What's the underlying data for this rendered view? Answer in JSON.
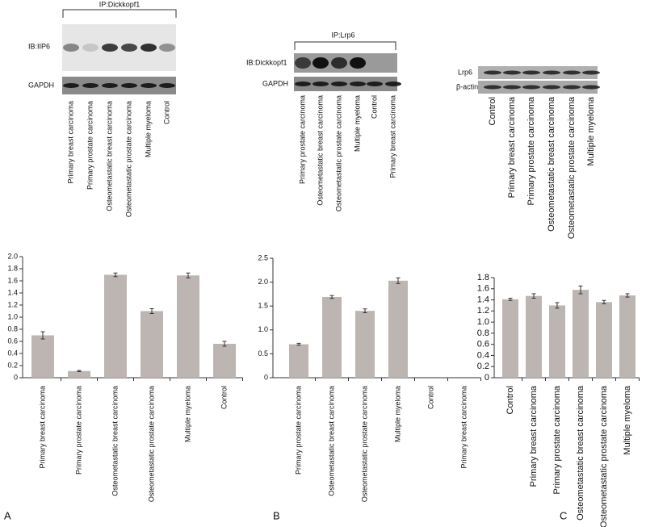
{
  "blots": [
    {
      "ip": "IP:Dickkopf1",
      "ib": "IB:IIP6",
      "loading": "GAPDH"
    },
    {
      "ip": "IP:Lrp6",
      "ib": "IB:Dickkopf1",
      "loading": "GAPDH"
    },
    {
      "ib": "Lrp6",
      "loading": "β-actin"
    }
  ],
  "chart_data": [
    {
      "type": "bar",
      "panel": "A",
      "categories": [
        "Primary breast carcinoma",
        "Primary prostate carcinoma",
        "Osteometastatic breast carcinoma",
        "Osteometastatic prostate carcinoma",
        "Multiple myeloma",
        "Control"
      ],
      "values": [
        0.7,
        0.11,
        1.7,
        1.1,
        1.69,
        0.56
      ],
      "errors": [
        0.06,
        0.01,
        0.03,
        0.04,
        0.04,
        0.04
      ],
      "color": "#bdb5b1",
      "ylim": [
        0,
        2.0
      ],
      "yticks": [
        0,
        0.2,
        0.4,
        0.6,
        0.8,
        {
          "value": 1,
          "label": "1.0"
        },
        1.2,
        1.4,
        1.6,
        1.8,
        {
          "value": 2,
          "label": "2.0"
        }
      ]
    },
    {
      "type": "bar",
      "panel": "B",
      "categories": [
        "Primary prostate carcinoma",
        "Osteometastatic breast carcinoma",
        "Osteometastatic prostate carcinoma",
        "Multiple myeloma",
        "Control",
        "Primary breast carcinoma"
      ],
      "values": [
        0.7,
        1.69,
        1.4,
        2.03,
        0,
        0
      ],
      "errors": [
        0.02,
        0.03,
        0.04,
        0.06,
        0,
        0
      ],
      "color": "#bdb5b1",
      "ylim": [
        0,
        2.5
      ],
      "yticks": [
        0,
        0.5,
        {
          "value": 1,
          "label": "1.0"
        },
        1.5,
        {
          "value": 2,
          "label": "2.0"
        },
        2.5
      ]
    },
    {
      "type": "bar",
      "panel": "C",
      "categories": [
        "Control",
        "Primary breast carcinoma",
        "Primary prostate carcinoma",
        "Osteometastatic breast carcinoma",
        "Osteometastatic prostate carcinoma",
        "Multiple myeloma"
      ],
      "values": [
        1.41,
        1.47,
        1.3,
        1.58,
        1.36,
        1.48
      ],
      "errors": [
        0.02,
        0.04,
        0.05,
        0.07,
        0.03,
        0.03
      ],
      "color": "#bdb5b1",
      "ylim": [
        0,
        1.8
      ],
      "yticks": [
        0,
        0.2,
        0.4,
        0.6,
        0.8,
        {
          "value": 1,
          "label": "1.0"
        },
        1.2,
        1.4,
        1.6,
        1.8
      ]
    }
  ]
}
